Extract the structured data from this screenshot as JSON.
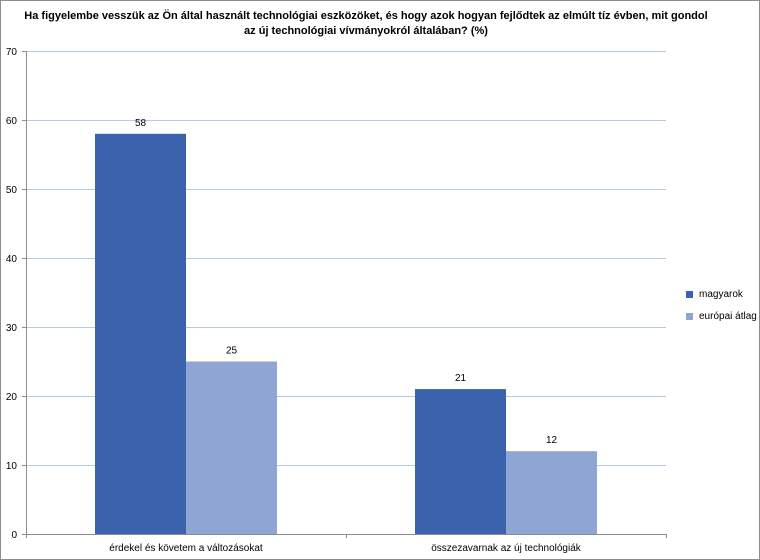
{
  "chart_data": {
    "type": "bar",
    "title_lines": [
      "Ha figyelembe vesszük az Ön által használt  technológiai eszközöket, és hogy azok hogyan fejlődtek az elmúlt tíz évben, mit gondol",
      "az új technológiai vívmányokról  általában? (%)"
    ],
    "categories": [
      "érdekel és követem a változásokat",
      "összezavarnak az új technológiák"
    ],
    "series": [
      {
        "name": "magyarok",
        "values": [
          58,
          21
        ],
        "color": "#3a62ad"
      },
      {
        "name": "európai  átlag",
        "values": [
          25,
          12
        ],
        "color": "#8fa5d4"
      }
    ],
    "yticks": [
      0,
      10,
      20,
      30,
      40,
      50,
      60,
      70
    ],
    "ylim": [
      0,
      70
    ],
    "grid": true,
    "legend_position": "right"
  }
}
